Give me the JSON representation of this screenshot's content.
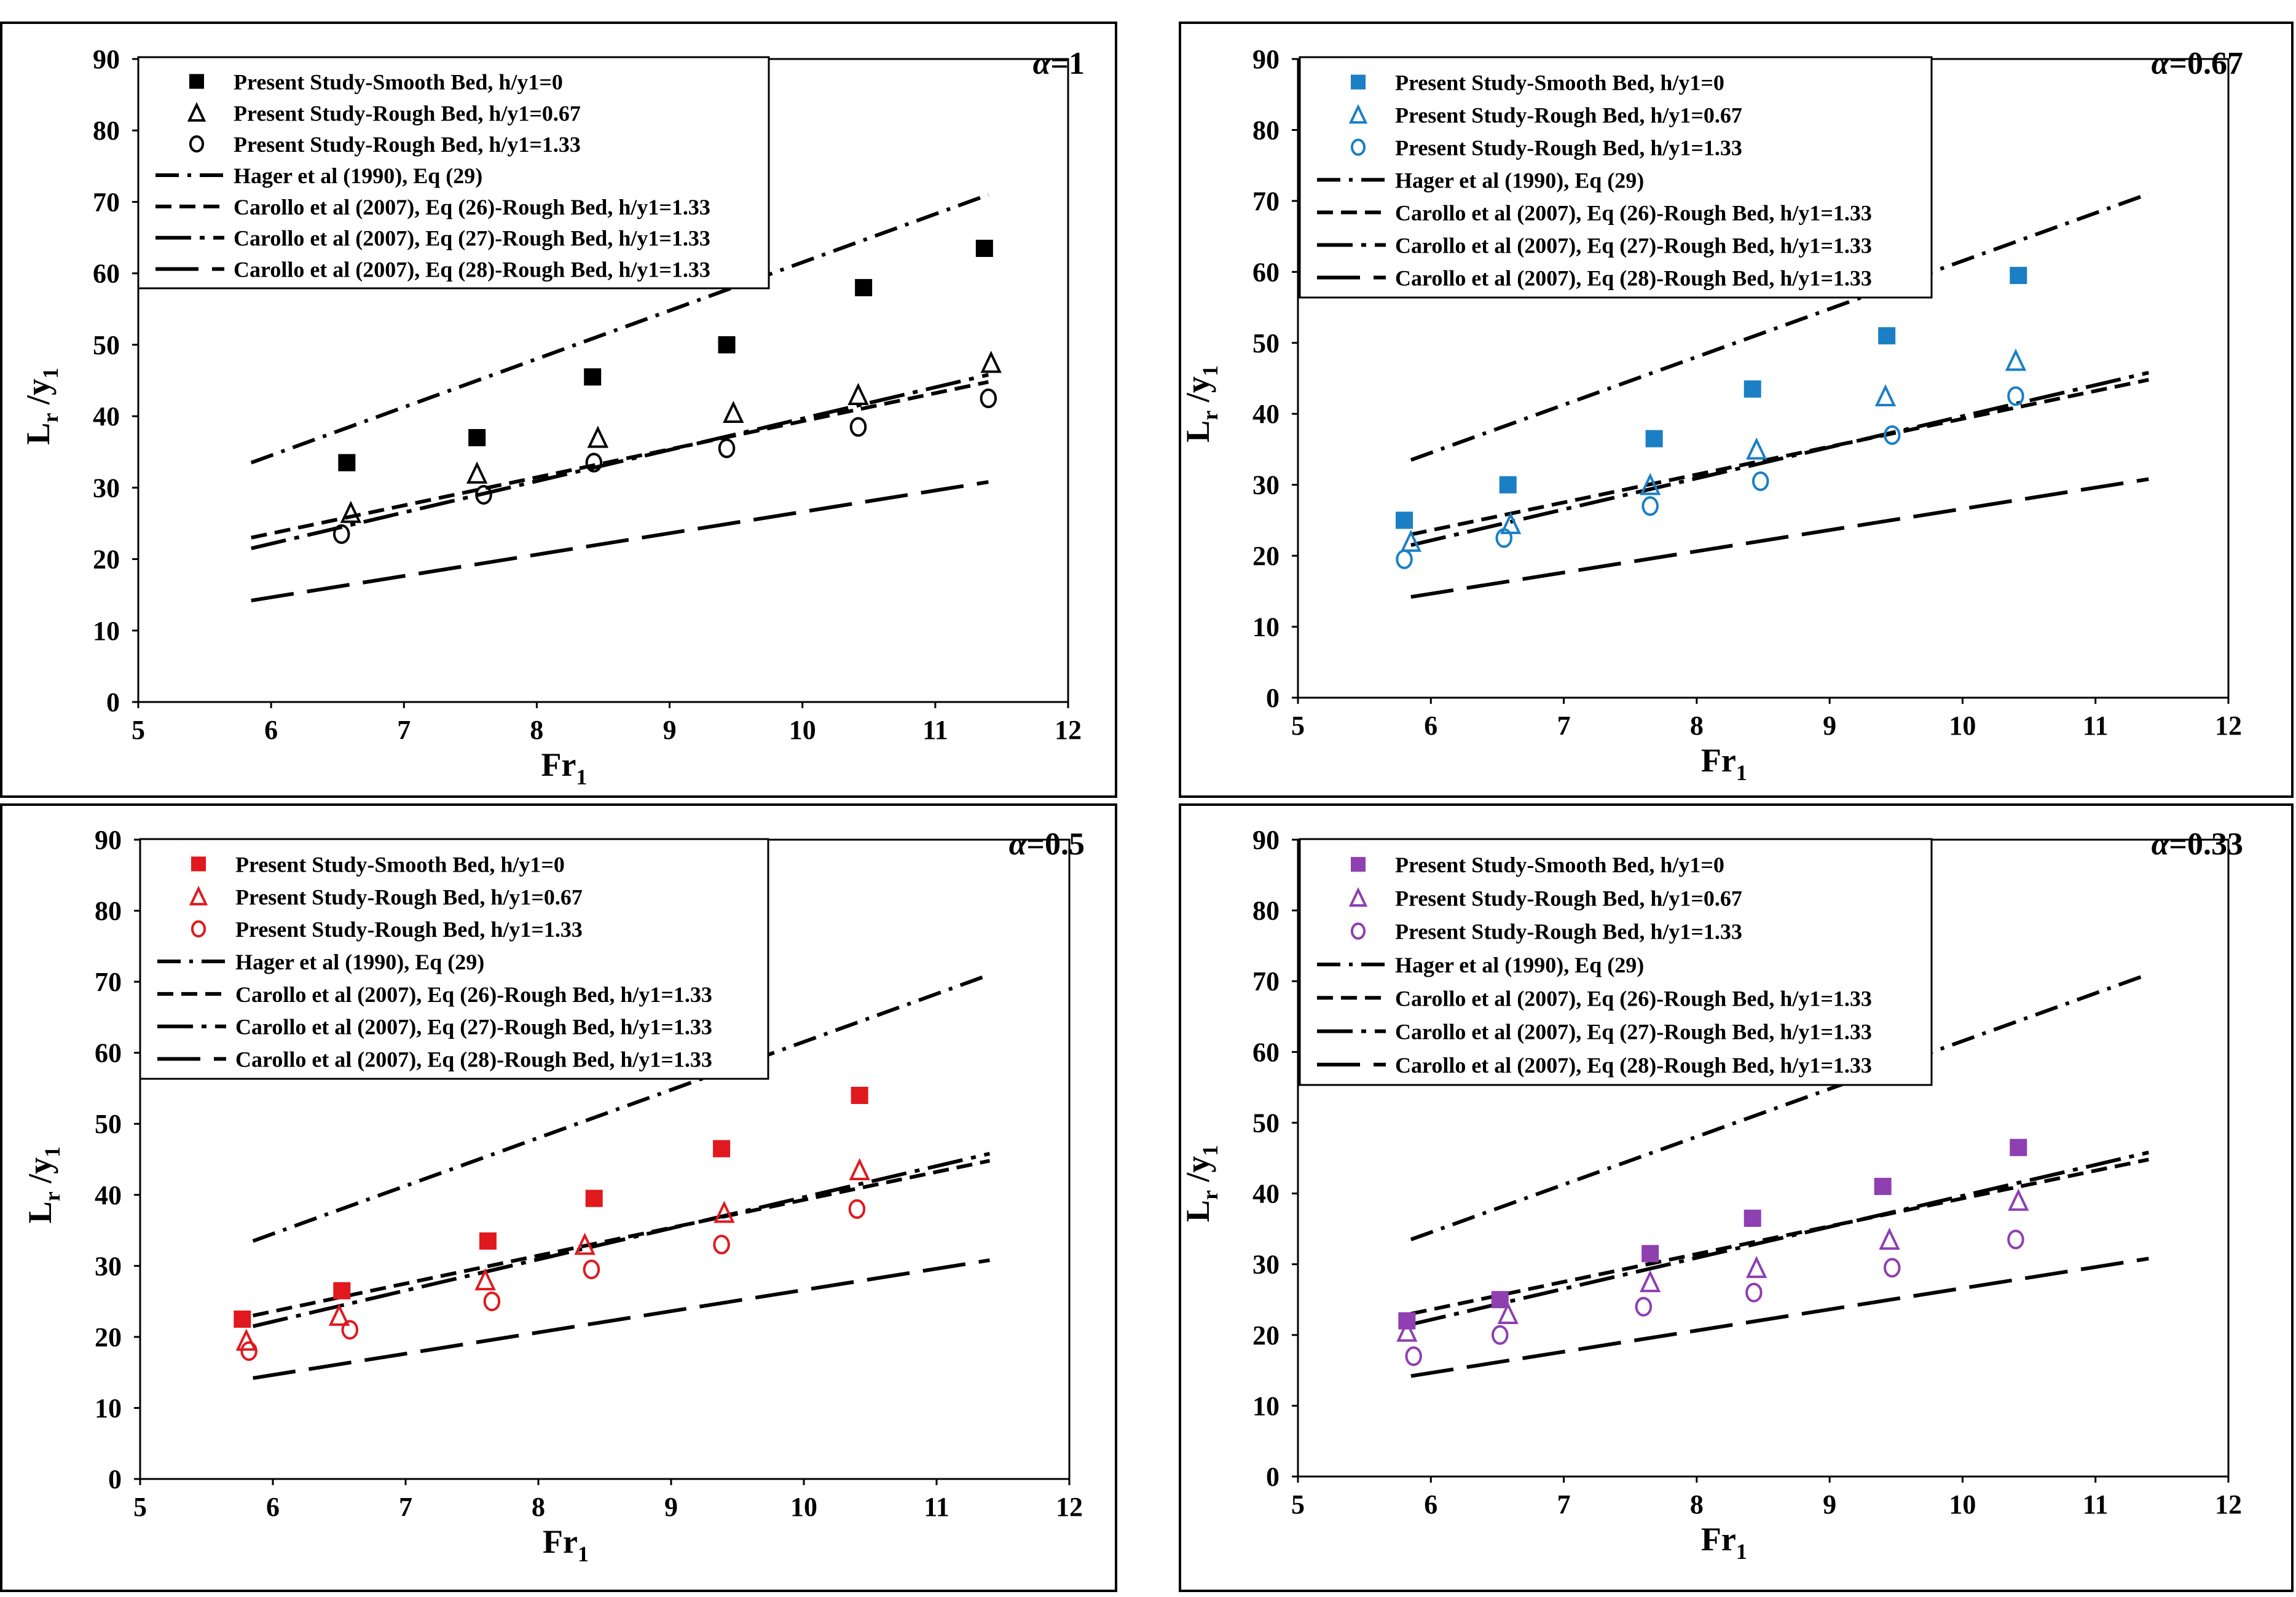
{
  "chart_data": [
    {
      "type": "scatter",
      "panel_label": "α=1",
      "alpha_symbol": "α",
      "alpha_value": "=1",
      "marker_color": "#000000",
      "xlabel": "Fr",
      "xlabel_sub": "1",
      "ylabel": "L",
      "ylabel_sub1": "r",
      "ylabel_mid": " /y",
      "ylabel_sub2": "1",
      "xlim": [
        5,
        12
      ],
      "ylim": [
        0,
        90
      ],
      "xticks": [
        "5",
        "6",
        "7",
        "8",
        "9",
        "10",
        "11",
        "12"
      ],
      "yticks": [
        "0",
        "10",
        "20",
        "30",
        "40",
        "50",
        "60",
        "70",
        "80",
        "90"
      ],
      "series": [
        {
          "name": "Present Study-Smooth Bed, h/y1=0",
          "marker": "square",
          "x": [
            6.57,
            7.55,
            8.42,
            9.43,
            10.46,
            11.37
          ],
          "y": [
            33.5,
            37.0,
            45.5,
            50.0,
            58.0,
            63.5
          ]
        },
        {
          "name": "Present Study-Rough Bed, h/y1=0.67",
          "marker": "triangle",
          "x": [
            6.6,
            7.55,
            8.46,
            9.48,
            10.42,
            11.42
          ],
          "y": [
            26.5,
            32.0,
            37.0,
            40.5,
            43.0,
            47.5
          ]
        },
        {
          "name": "Present Study-Rough Bed, h/y1=1.33",
          "marker": "circle",
          "x": [
            6.53,
            7.6,
            8.43,
            9.43,
            10.42,
            11.4
          ],
          "y": [
            23.5,
            29.0,
            33.5,
            35.5,
            38.5,
            42.5
          ]
        }
      ],
      "curves": [
        {
          "name": "Hager et al (1990), Eq (29)",
          "style": "dashdot",
          "x": [
            5.85,
            11.4
          ],
          "y": [
            33.5,
            71.0
          ]
        },
        {
          "name": "Carollo et al (2007), Eq (26)-Rough Bed, h/y1=1.33",
          "style": "dash",
          "x": [
            5.85,
            11.4
          ],
          "y": [
            23.0,
            44.8
          ]
        },
        {
          "name": "Carollo et al (2007), Eq (27)-Rough Bed, h/y1=1.33",
          "style": "longdashdot",
          "x": [
            5.85,
            11.4
          ],
          "y": [
            21.5,
            45.8
          ]
        },
        {
          "name": "Carollo et al (2007), Eq (28)-Rough Bed, h/y1=1.33",
          "style": "longdash",
          "x": [
            5.85,
            11.4
          ],
          "y": [
            14.2,
            30.8
          ]
        }
      ]
    },
    {
      "type": "scatter",
      "panel_label": "α=0.67",
      "alpha_symbol": "α",
      "alpha_value": "=0.67",
      "marker_color": "#1a7fc4",
      "xlabel": "Fr",
      "xlabel_sub": "1",
      "ylabel": "L",
      "ylabel_sub1": "r",
      "ylabel_mid": " /y",
      "ylabel_sub2": "1",
      "xlim": [
        5,
        12
      ],
      "ylim": [
        0,
        90
      ],
      "xticks": [
        "5",
        "6",
        "7",
        "8",
        "9",
        "10",
        "11",
        "12"
      ],
      "yticks": [
        "0",
        "10",
        "20",
        "30",
        "40",
        "50",
        "60",
        "70",
        "80",
        "90"
      ],
      "series": [
        {
          "name": "Present Study-Smooth Bed, h/y1=0",
          "marker": "square",
          "x": [
            5.8,
            6.58,
            7.68,
            8.42,
            9.43,
            10.42
          ],
          "y": [
            25.0,
            30.0,
            36.5,
            43.5,
            51.0,
            59.5
          ]
        },
        {
          "name": "Present Study-Rough Bed, h/y1=0.67",
          "marker": "triangle",
          "x": [
            5.85,
            6.6,
            7.65,
            8.45,
            9.42,
            10.4
          ],
          "y": [
            22.0,
            24.5,
            30.0,
            35.0,
            42.5,
            47.5
          ]
        },
        {
          "name": "Present Study-Rough Bed, h/y1=1.33",
          "marker": "circle",
          "x": [
            5.8,
            6.55,
            7.65,
            8.48,
            9.47,
            10.4
          ],
          "y": [
            19.5,
            22.5,
            27.0,
            30.5,
            37.0,
            42.5
          ]
        }
      ],
      "curves": [
        {
          "name": "Hager et al (1990), Eq (29)",
          "style": "dashdot",
          "x": [
            5.85,
            11.4
          ],
          "y": [
            33.5,
            71.0
          ]
        },
        {
          "name": "Carollo et al (2007), Eq (26)-Rough Bed, h/y1=1.33",
          "style": "dash",
          "x": [
            5.85,
            11.4
          ],
          "y": [
            23.0,
            44.8
          ]
        },
        {
          "name": "Carollo et al (2007), Eq (27)-Rough Bed, h/y1=1.33",
          "style": "longdashdot",
          "x": [
            5.85,
            11.4
          ],
          "y": [
            21.5,
            45.8
          ]
        },
        {
          "name": "Carollo et al (2007), Eq (28)-Rough Bed, h/y1=1.33",
          "style": "longdash",
          "x": [
            5.85,
            11.4
          ],
          "y": [
            14.2,
            30.8
          ]
        }
      ]
    },
    {
      "type": "scatter",
      "panel_label": "α=0.5",
      "alpha_symbol": "α",
      "alpha_value": "=0.5",
      "marker_color": "#e0191e",
      "xlabel": "Fr",
      "xlabel_sub": "1",
      "ylabel": "L",
      "ylabel_sub1": "r",
      "ylabel_mid": " /y",
      "ylabel_sub2": "1",
      "xlim": [
        5,
        12
      ],
      "ylim": [
        0,
        90
      ],
      "xticks": [
        "5",
        "6",
        "7",
        "8",
        "9",
        "10",
        "11",
        "12"
      ],
      "yticks": [
        "0",
        "10",
        "20",
        "30",
        "40",
        "50",
        "60",
        "70",
        "80",
        "90"
      ],
      "series": [
        {
          "name": "Present Study-Smooth Bed, h/y1=0",
          "marker": "square",
          "x": [
            5.77,
            6.52,
            7.62,
            8.42,
            9.38,
            10.42
          ],
          "y": [
            22.5,
            26.5,
            33.5,
            39.5,
            46.5,
            54.0
          ]
        },
        {
          "name": "Present Study-Rough Bed, h/y1=0.67",
          "marker": "triangle",
          "x": [
            5.8,
            6.5,
            7.6,
            8.35,
            9.4,
            10.42
          ],
          "y": [
            19.5,
            23.0,
            28.0,
            33.0,
            37.5,
            43.5
          ]
        },
        {
          "name": "Present Study-Rough Bed, h/y1=1.33",
          "marker": "circle",
          "x": [
            5.82,
            6.58,
            7.65,
            8.4,
            9.38,
            10.4
          ],
          "y": [
            18.0,
            21.0,
            25.0,
            29.5,
            33.0,
            38.0
          ]
        }
      ],
      "curves": [
        {
          "name": "Hager et al (1990), Eq (29)",
          "style": "dashdot",
          "x": [
            5.85,
            11.4
          ],
          "y": [
            33.5,
            71.0
          ]
        },
        {
          "name": "Carollo et al (2007), Eq (26)-Rough Bed, h/y1=1.33",
          "style": "dash",
          "x": [
            5.85,
            11.4
          ],
          "y": [
            23.0,
            44.8
          ]
        },
        {
          "name": "Carollo et al (2007), Eq (27)-Rough Bed, h/y1=1.33",
          "style": "longdashdot",
          "x": [
            5.85,
            11.4
          ],
          "y": [
            21.5,
            45.8
          ]
        },
        {
          "name": "Carollo et al (2007), Eq (28)-Rough Bed, h/y1=1.33",
          "style": "longdash",
          "x": [
            5.85,
            11.4
          ],
          "y": [
            14.2,
            30.8
          ]
        }
      ]
    },
    {
      "type": "scatter",
      "panel_label": "α=0.33",
      "alpha_symbol": "α",
      "alpha_value": "=0.33",
      "marker_color": "#8e3fb0",
      "xlabel": "Fr",
      "xlabel_sub": "1",
      "ylabel": "L",
      "ylabel_sub1": "r",
      "ylabel_mid": " /y",
      "ylabel_sub2": "1",
      "xlim": [
        5,
        12
      ],
      "ylim": [
        0,
        90
      ],
      "xticks": [
        "5",
        "6",
        "7",
        "8",
        "9",
        "10",
        "11",
        "12"
      ],
      "yticks": [
        "0",
        "10",
        "20",
        "30",
        "40",
        "50",
        "60",
        "70",
        "80",
        "90"
      ],
      "series": [
        {
          "name": "Present Study-Smooth Bed, h/y1=0",
          "marker": "square",
          "x": [
            5.82,
            6.52,
            7.65,
            8.42,
            9.4,
            10.42
          ],
          "y": [
            22.0,
            25.0,
            31.5,
            36.5,
            41.0,
            46.5
          ]
        },
        {
          "name": "Present Study-Rough Bed, h/y1=0.67",
          "marker": "triangle",
          "x": [
            5.82,
            6.58,
            7.65,
            8.45,
            9.45,
            10.42
          ],
          "y": [
            20.5,
            23.0,
            27.5,
            29.5,
            33.5,
            39.0
          ]
        },
        {
          "name": "Present Study-Rough Bed, h/y1=1.33",
          "marker": "circle",
          "x": [
            5.87,
            6.52,
            7.6,
            8.43,
            9.47,
            10.4
          ],
          "y": [
            17.0,
            20.0,
            24.0,
            26.0,
            29.5,
            33.5
          ]
        }
      ],
      "curves": [
        {
          "name": "Hager et al (1990), Eq (29)",
          "style": "dashdot",
          "x": [
            5.85,
            11.4
          ],
          "y": [
            33.5,
            71.0
          ]
        },
        {
          "name": "Carollo et al (2007), Eq (26)-Rough Bed, h/y1=1.33",
          "style": "dash",
          "x": [
            5.85,
            11.4
          ],
          "y": [
            23.0,
            44.8
          ]
        },
        {
          "name": "Carollo et al (2007), Eq (27)-Rough Bed, h/y1=1.33",
          "style": "longdashdot",
          "x": [
            5.85,
            11.4
          ],
          "y": [
            21.5,
            45.8
          ]
        },
        {
          "name": "Carollo et al (2007), Eq (28)-Rough Bed, h/y1=1.33",
          "style": "longdash",
          "x": [
            5.85,
            11.4
          ],
          "y": [
            14.2,
            30.8
          ]
        }
      ]
    }
  ]
}
